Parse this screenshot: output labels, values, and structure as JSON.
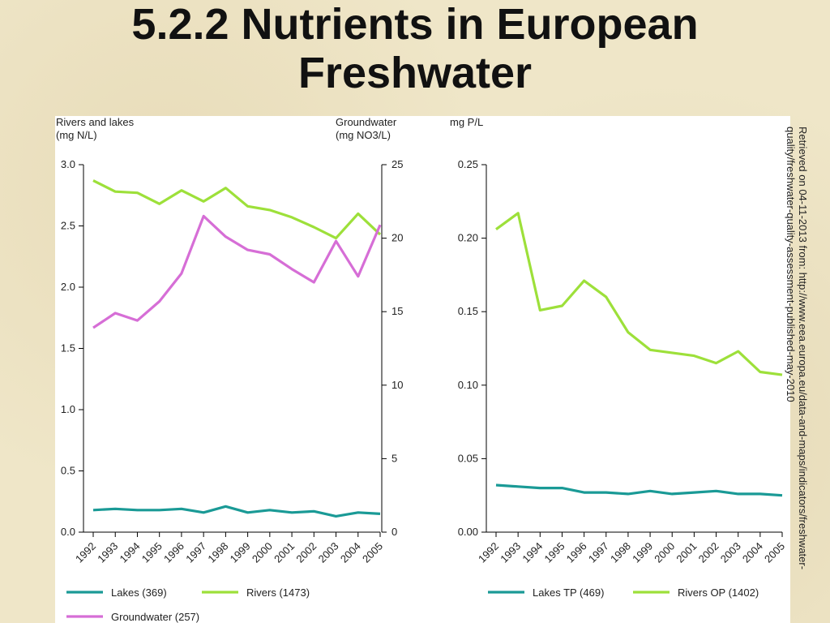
{
  "slide": {
    "title_line1": "5.2.2 Nutrients in European",
    "title_line2": "Freshwater",
    "source_note": "Retrieved on 04-11-2013 from: http://www.eea.europa.eu/data-and-maps/indicators/freshwater-quality/freshwater-quality-assessment-published-may-2010"
  },
  "colors": {
    "lakes": "#1a9a96",
    "rivers": "#9de03a",
    "groundwater": "#d66ed6",
    "axis": "#000000"
  },
  "chart_data": [
    {
      "type": "line",
      "left_axis_label": [
        "Rivers and lakes",
        "(mg N/L)"
      ],
      "right_axis_label": [
        "Groundwater",
        "(mg NO3/L)"
      ],
      "ylim_left": [
        0,
        3.0
      ],
      "yticks_left": [
        "0.0",
        "0.5",
        "1.0",
        "1.5",
        "2.0",
        "2.5",
        "3.0"
      ],
      "ylim_right": [
        0,
        25
      ],
      "yticks_right": [
        "0",
        "5",
        "10",
        "15",
        "20",
        "25"
      ],
      "x": [
        "1992",
        "1993",
        "1994",
        "1995",
        "1996",
        "1997",
        "1998",
        "1999",
        "2000",
        "2001",
        "2002",
        "2003",
        "2004",
        "2005"
      ],
      "series": [
        {
          "name": "Lakes (369)",
          "axis": "left",
          "color": "#1a9a96",
          "values": [
            0.18,
            0.19,
            0.18,
            0.18,
            0.19,
            0.16,
            0.21,
            0.16,
            0.18,
            0.16,
            0.17,
            0.13,
            0.16,
            0.15
          ]
        },
        {
          "name": "Rivers (1473)",
          "axis": "left",
          "color": "#9de03a",
          "values": [
            2.87,
            2.78,
            2.77,
            2.68,
            2.79,
            2.7,
            2.81,
            2.66,
            2.63,
            2.57,
            2.49,
            2.4,
            2.6,
            2.43
          ]
        },
        {
          "name": "Groundwater (257)",
          "axis": "right",
          "color": "#d66ed6",
          "values": [
            13.9,
            14.9,
            14.4,
            15.7,
            17.6,
            21.5,
            20.1,
            19.2,
            18.9,
            17.9,
            17.0,
            19.8,
            17.4,
            20.9
          ]
        }
      ],
      "legend": "bottom"
    },
    {
      "type": "line",
      "left_axis_label": [
        "mg P/L"
      ],
      "ylim_left": [
        0,
        0.25
      ],
      "yticks_left": [
        "0.00",
        "0.05",
        "0.10",
        "0.15",
        "0.20",
        "0.25"
      ],
      "x": [
        "1992",
        "1993",
        "1994",
        "1995",
        "1996",
        "1997",
        "1998",
        "1999",
        "2000",
        "2001",
        "2002",
        "2003",
        "2004",
        "2005"
      ],
      "series": [
        {
          "name": "Lakes TP (469)",
          "axis": "left",
          "color": "#1a9a96",
          "values": [
            0.032,
            0.031,
            0.03,
            0.03,
            0.027,
            0.027,
            0.026,
            0.028,
            0.026,
            0.027,
            0.028,
            0.026,
            0.026,
            0.025
          ]
        },
        {
          "name": "Rivers OP (1402)",
          "axis": "left",
          "color": "#9de03a",
          "values": [
            0.206,
            0.217,
            0.151,
            0.154,
            0.171,
            0.16,
            0.136,
            0.124,
            0.122,
            0.12,
            0.115,
            0.123,
            0.109,
            0.107
          ]
        }
      ],
      "legend": "bottom"
    }
  ]
}
